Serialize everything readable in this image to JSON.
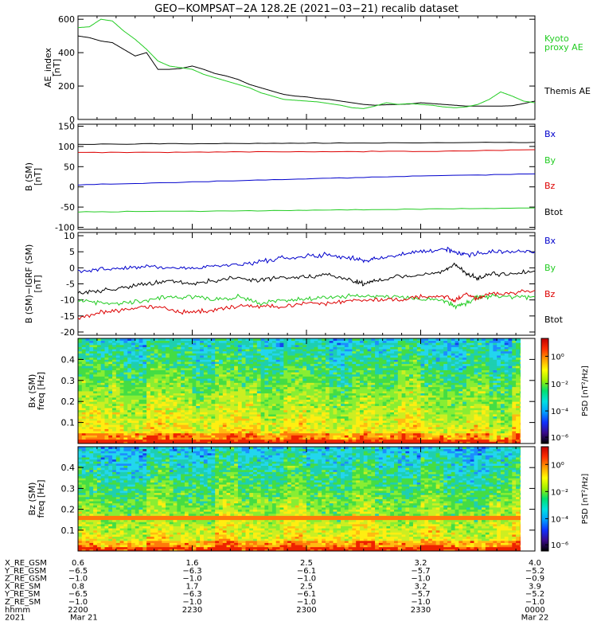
{
  "title": "GEO−KOMPSAT−2A 128.2E (2021−03−21) recalib dataset",
  "colors": {
    "black": "#000000",
    "green": "#22cc22",
    "red": "#dd0000",
    "blue": "#0000cc"
  },
  "chart_data": [
    {
      "type": "line",
      "panel": "ae",
      "ylabel": [
        "AE_index",
        "[nT]"
      ],
      "ylim": [
        0,
        620
      ],
      "yticks": [
        0,
        200,
        400,
        600
      ],
      "xlim_min": [
        0,
        120
      ],
      "legend": [
        {
          "text": [
            "Kyoto",
            "proxy AE"
          ],
          "color": "green"
        },
        {
          "text": [
            "Themis AE"
          ],
          "color": "black"
        }
      ],
      "series": [
        {
          "name": "Themis AE",
          "color": "black",
          "x": [
            0,
            3,
            6,
            9,
            12,
            15,
            18,
            21,
            24,
            27,
            30,
            33,
            36,
            39,
            42,
            45,
            48,
            51,
            54,
            57,
            60,
            63,
            66,
            69,
            72,
            75,
            78,
            81,
            84,
            87,
            90,
            93,
            96,
            99,
            102,
            105,
            108,
            111,
            114,
            117,
            120
          ],
          "y": [
            500,
            490,
            470,
            460,
            420,
            380,
            400,
            300,
            300,
            305,
            320,
            300,
            275,
            260,
            240,
            210,
            190,
            170,
            150,
            140,
            135,
            125,
            120,
            110,
            100,
            90,
            85,
            88,
            90,
            92,
            100,
            95,
            90,
            85,
            80,
            80,
            80,
            80,
            82,
            95,
            110
          ]
        },
        {
          "name": "Kyoto proxy AE",
          "color": "green",
          "x": [
            0,
            3,
            6,
            9,
            12,
            15,
            18,
            21,
            24,
            27,
            30,
            33,
            36,
            39,
            42,
            45,
            48,
            51,
            54,
            57,
            60,
            63,
            66,
            69,
            72,
            75,
            78,
            81,
            84,
            87,
            90,
            93,
            96,
            99,
            102,
            105,
            108,
            111,
            114,
            117,
            120
          ],
          "y": [
            550,
            555,
            600,
            590,
            530,
            480,
            420,
            350,
            320,
            310,
            300,
            270,
            250,
            230,
            210,
            190,
            160,
            140,
            120,
            115,
            110,
            105,
            95,
            85,
            70,
            65,
            80,
            100,
            90,
            95,
            90,
            85,
            75,
            70,
            75,
            90,
            120,
            165,
            140,
            110,
            100
          ]
        }
      ]
    },
    {
      "type": "line",
      "panel": "bsm",
      "ylabel": [
        "B (SM)",
        "[nT]"
      ],
      "ylim": [
        -105,
        155
      ],
      "yticks": [
        -100,
        -50,
        0,
        50,
        100,
        150
      ],
      "legend": [
        {
          "text": [
            "Bx"
          ],
          "color": "blue"
        },
        {
          "text": [
            "By"
          ],
          "color": "green"
        },
        {
          "text": [
            "Bz"
          ],
          "color": "red"
        },
        {
          "text": [
            "Btot"
          ],
          "color": "black"
        }
      ],
      "series": [
        {
          "name": "Btot",
          "color": "black",
          "x": [
            0,
            30,
            60,
            90,
            120
          ],
          "y": [
            105,
            107,
            108,
            109,
            110
          ]
        },
        {
          "name": "Bz",
          "color": "red",
          "x": [
            0,
            30,
            60,
            90,
            120
          ],
          "y": [
            85,
            86,
            87,
            88,
            92
          ]
        },
        {
          "name": "Bx",
          "color": "blue",
          "x": [
            0,
            30,
            60,
            90,
            120
          ],
          "y": [
            5,
            12,
            20,
            27,
            32
          ]
        },
        {
          "name": "By",
          "color": "green",
          "x": [
            0,
            30,
            60,
            90,
            120
          ],
          "y": [
            -62,
            -60,
            -58,
            -55,
            -52
          ]
        }
      ]
    },
    {
      "type": "line",
      "panel": "dbsm",
      "ylabel": [
        "B (SM)−IGRF (SM)",
        "[nT]"
      ],
      "ylim": [
        -21,
        11
      ],
      "yticks": [
        -20,
        -15,
        -10,
        -5,
        0,
        5,
        10
      ],
      "legend": [
        {
          "text": [
            "Bx"
          ],
          "color": "blue"
        },
        {
          "text": [
            "By"
          ],
          "color": "green"
        },
        {
          "text": [
            "Bz"
          ],
          "color": "red"
        },
        {
          "text": [
            "Btot"
          ],
          "color": "black"
        }
      ],
      "series": [
        {
          "name": "Bx",
          "color": "blue",
          "x": [
            0,
            6,
            12,
            18,
            24,
            30,
            36,
            42,
            48,
            54,
            60,
            66,
            72,
            75,
            78,
            84,
            90,
            96,
            99,
            102,
            108,
            114,
            120
          ],
          "y": [
            -1,
            -0.5,
            0,
            0.5,
            0,
            0,
            0.5,
            1,
            2,
            3,
            3.5,
            4,
            3,
            2,
            3,
            4,
            5,
            6,
            5,
            4,
            5,
            5,
            5
          ]
        },
        {
          "name": "Btot",
          "color": "black",
          "x": [
            0,
            6,
            12,
            18,
            24,
            30,
            36,
            42,
            48,
            54,
            60,
            66,
            72,
            75,
            78,
            84,
            90,
            96,
            99,
            102,
            105,
            108,
            114,
            120
          ],
          "y": [
            -8,
            -7,
            -6,
            -5,
            -4,
            -5,
            -4,
            -3,
            -4,
            -3,
            -3,
            -2,
            -4,
            -5,
            -4,
            -3,
            -2,
            -1,
            1,
            -2,
            -3,
            -2,
            -2,
            -1
          ]
        },
        {
          "name": "By",
          "color": "green",
          "x": [
            0,
            6,
            12,
            18,
            24,
            30,
            36,
            42,
            48,
            54,
            60,
            66,
            72,
            78,
            84,
            90,
            96,
            99,
            102,
            105,
            108,
            114,
            120
          ],
          "y": [
            -10,
            -11,
            -11,
            -10,
            -9,
            -9,
            -10,
            -9,
            -11,
            -10,
            -10,
            -9,
            -9,
            -9,
            -9,
            -10,
            -10,
            -12,
            -11,
            -9,
            -9,
            -9,
            -9
          ]
        },
        {
          "name": "Bz",
          "color": "red",
          "x": [
            0,
            6,
            12,
            18,
            24,
            30,
            36,
            42,
            48,
            54,
            60,
            66,
            72,
            78,
            84,
            90,
            96,
            99,
            102,
            105,
            108,
            114,
            120
          ],
          "y": [
            -16,
            -14,
            -13,
            -12,
            -13,
            -14,
            -13,
            -12,
            -12,
            -12,
            -11,
            -11,
            -10,
            -10,
            -10,
            -9,
            -9,
            -10,
            -8,
            -10,
            -8,
            -8,
            -7
          ]
        }
      ]
    },
    {
      "type": "heatmap",
      "panel": "specbx",
      "ylabel": [
        "Bx (SM)",
        "freq [Hz]"
      ],
      "ylim": [
        0,
        0.5
      ],
      "yticks": [
        "0.1",
        "0.2",
        "0.3",
        "0.4"
      ],
      "colorbar_label": "PSD [nT²/Hz]",
      "colorbar_ticks": [
        "10⁰",
        "10⁻²",
        "10⁻⁴",
        "10⁻⁶"
      ]
    },
    {
      "type": "heatmap",
      "panel": "specbz",
      "ylabel": [
        "Bz (SM)",
        "freq [Hz]"
      ],
      "ylim": [
        0,
        0.5
      ],
      "yticks": [
        "0.1",
        "0.2",
        "0.3",
        "0.4"
      ],
      "colorbar_label": "PSD [nT²/Hz]",
      "colorbar_ticks": [
        "10⁰",
        "10⁻²",
        "10⁻⁴",
        "10⁻⁶"
      ]
    }
  ],
  "ephemeris": {
    "labels": [
      "X_RE_GSM",
      "Y_RE_GSM",
      "Z_RE_GSM",
      "X_RE_SM",
      "Y_RE_SM",
      "Z_RE_SM",
      "hhmm",
      "2021"
    ],
    "columns": [
      [
        "0.6",
        "−6.5",
        "−1.0",
        "0.8",
        "−6.5",
        "−1.0",
        "2200",
        "Mar 21"
      ],
      [
        "1.6",
        "−6.3",
        "−1.0",
        "1.7",
        "−6.3",
        "−1.0",
        "2230",
        ""
      ],
      [
        "2.5",
        "−6.1",
        "−1.0",
        "2.5",
        "−6.1",
        "−1.0",
        "2300",
        ""
      ],
      [
        "3.2",
        "−5.7",
        "−1.0",
        "3.2",
        "−5.7",
        "−1.0",
        "2330",
        ""
      ],
      [
        "4.0",
        "−5.2",
        "−0.9",
        "3.9",
        "−5.2",
        "−1.0",
        "0000",
        "Mar 22"
      ]
    ]
  }
}
